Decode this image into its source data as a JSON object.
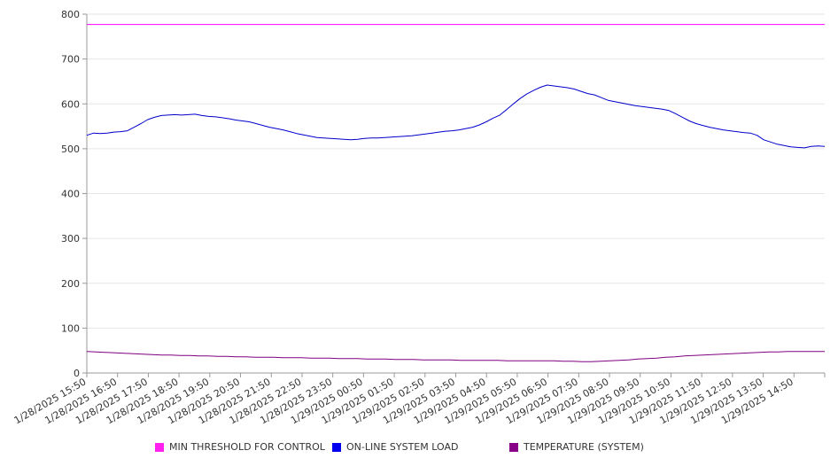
{
  "chart_data": {
    "type": "line",
    "ylim": [
      0,
      800
    ],
    "yticks": [
      0,
      100,
      200,
      300,
      400,
      500,
      600,
      700,
      800
    ],
    "xticks": [
      "1/28/2025 15:50",
      "1/28/2025 16:50",
      "1/28/2025 17:50",
      "1/28/2025 18:50",
      "1/28/2025 19:50",
      "1/28/2025 20:50",
      "1/28/2025 21:50",
      "1/28/2025 22:50",
      "1/28/2025 23:50",
      "1/29/2025 00:50",
      "1/29/2025 01:50",
      "1/29/2025 02:50",
      "1/29/2025 03:50",
      "1/29/2025 04:50",
      "1/29/2025 05:50",
      "1/29/2025 06:50",
      "1/29/2025 07:50",
      "1/29/2025 08:50",
      "1/29/2025 09:50",
      "1/29/2025 10:50",
      "1/29/2025 11:50",
      "1/29/2025 12:50",
      "1/29/2025 13:50",
      "1/29/2025 14:50"
    ],
    "x_end": "1/29/2025 15:50",
    "grid": true,
    "legend_placement": "bottom",
    "series": [
      {
        "name": "MIN THRESHOLD FOR CONTROL",
        "color": "#ff00ff",
        "swatch": "#ff22ee",
        "values": [
          777,
          777
        ]
      },
      {
        "name": "ON-LINE SYSTEM LOAD",
        "color": "#0000cc",
        "swatch": "#0000ee",
        "values": [
          530,
          535,
          534,
          535,
          537,
          538,
          540,
          548,
          556,
          565,
          570,
          574,
          575,
          576,
          575,
          576,
          577,
          574,
          572,
          571,
          569,
          567,
          564,
          562,
          560,
          556,
          552,
          548,
          545,
          542,
          538,
          534,
          531,
          528,
          525,
          524,
          523,
          522,
          521,
          520,
          521,
          523,
          524,
          524,
          525,
          526,
          527,
          528,
          529,
          531,
          533,
          535,
          537,
          539,
          540,
          542,
          545,
          548,
          553,
          560,
          568,
          575,
          587,
          600,
          612,
          622,
          630,
          637,
          642,
          640,
          638,
          636,
          633,
          628,
          623,
          620,
          614,
          608,
          605,
          602,
          599,
          596,
          594,
          592,
          590,
          588,
          585,
          578,
          570,
          562,
          556,
          552,
          548,
          545,
          542,
          540,
          538,
          536,
          535,
          530,
          520,
          515,
          510,
          507,
          504,
          503,
          502,
          505,
          506,
          505
        ]
      },
      {
        "name": "TEMPERATURE (SYSTEM)",
        "color": "#800080",
        "swatch": "#880088",
        "values": [
          48,
          47,
          46,
          45,
          44,
          43,
          42,
          41,
          40,
          40,
          39,
          39,
          38,
          38,
          37,
          37,
          36,
          36,
          35,
          35,
          35,
          34,
          34,
          34,
          33,
          33,
          33,
          32,
          32,
          32,
          31,
          31,
          31,
          30,
          30,
          30,
          29,
          29,
          29,
          29,
          28,
          28,
          28,
          28,
          28,
          27,
          27,
          27,
          27,
          27,
          27,
          26,
          26,
          25,
          25,
          26,
          27,
          28,
          29,
          31,
          32,
          33,
          35,
          36,
          38,
          39,
          40,
          41,
          42,
          43,
          44,
          45,
          46,
          47,
          47,
          48,
          48,
          48,
          48,
          48
        ]
      }
    ]
  }
}
